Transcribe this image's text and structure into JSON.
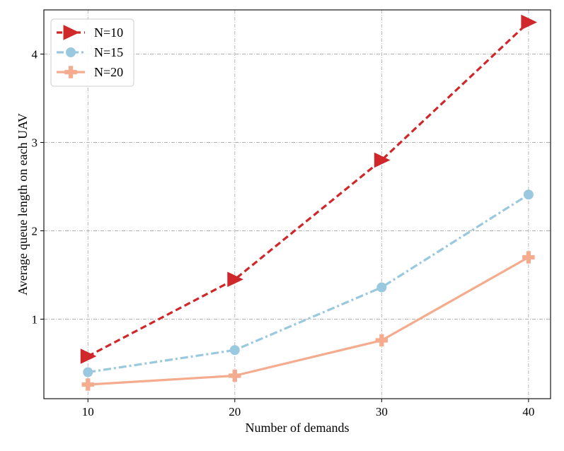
{
  "chart_data": {
    "type": "line",
    "title": "",
    "xlabel": "Number of demands",
    "ylabel": "Average queue length on each UAV",
    "x": [
      10,
      20,
      30,
      40
    ],
    "xticks": [
      10,
      20,
      30,
      40
    ],
    "xtick_labels": [
      "10",
      "20",
      "30",
      "40"
    ],
    "yticks": [
      1,
      2,
      3,
      4
    ],
    "ytick_labels": [
      "1",
      "2",
      "3",
      "4"
    ],
    "xlim": [
      7,
      41.5
    ],
    "ylim": [
      0.1,
      4.5
    ],
    "grid": true,
    "legend_position": "top-left",
    "series": [
      {
        "name": "N=10",
        "values": [
          0.58,
          1.45,
          2.8,
          4.36
        ],
        "color": "#d0272b",
        "line_style": "dashed",
        "marker": "triangle-right"
      },
      {
        "name": "N=15",
        "values": [
          0.4,
          0.65,
          1.36,
          2.41
        ],
        "color": "#9ac9df",
        "line_style": "dashdot",
        "marker": "circle"
      },
      {
        "name": "N=20",
        "values": [
          0.26,
          0.36,
          0.76,
          1.7
        ],
        "color": "#f4ab8e",
        "line_style": "solid",
        "marker": "plus"
      }
    ]
  }
}
